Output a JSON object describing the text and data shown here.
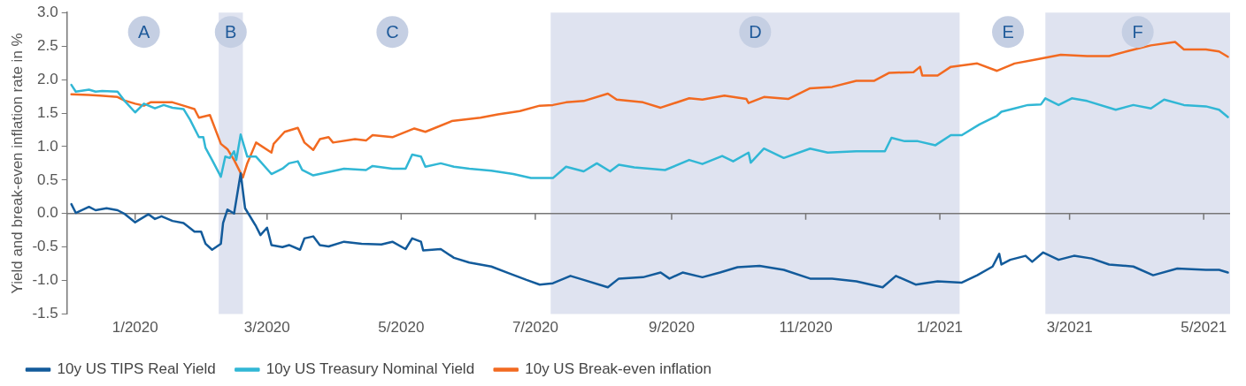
{
  "chart_data": {
    "type": "line",
    "ylabel": "Yield and break-even inflation rate in %",
    "xlim": [
      "2019-12-01",
      "2021-05-13"
    ],
    "xticks": [
      {
        "value": "2020-01-01",
        "label": "1/2020"
      },
      {
        "value": "2020-03-01",
        "label": "3/2020"
      },
      {
        "value": "2020-05-01",
        "label": "5/2020"
      },
      {
        "value": "2020-07-01",
        "label": "7/2020"
      },
      {
        "value": "2020-09-01",
        "label": "9/2020"
      },
      {
        "value": "2020-11-01",
        "label": "11/2020"
      },
      {
        "value": "2021-01-01",
        "label": "1/2021"
      },
      {
        "value": "2021-03-01",
        "label": "3/2021"
      },
      {
        "value": "2021-05-01",
        "label": "5/2021"
      }
    ],
    "ylim": [
      -1.5,
      3
    ],
    "yticks": [
      -1.5,
      {
        "value": -1,
        "label": "-1.0"
      },
      -0.5,
      {
        "value": 0,
        "label": "0.0"
      },
      0.5,
      {
        "value": 1,
        "label": "1.0"
      },
      1.5,
      {
        "value": 2,
        "label": "2.0"
      },
      2.5,
      {
        "value": 3,
        "label": "3.0"
      }
    ],
    "grid": false,
    "legend": "bottom left",
    "marker": "none",
    "line_style": "solid",
    "bands": [
      {
        "axis": "x",
        "from": "2020-02-08",
        "to": "2020-02-19",
        "label": "B",
        "color": "#dfe3f0"
      },
      {
        "axis": "x",
        "from": "2020-07-08",
        "to": "2021-01-10",
        "label": "D",
        "color": "#dfe3f0"
      },
      {
        "axis": "x",
        "from": "2021-02-18",
        "to": "2021-05-13",
        "label": "F",
        "color": "#dfe3f0"
      }
    ],
    "ref_lines": [
      {
        "axis": "y",
        "value": 0,
        "color": "#777777"
      }
    ],
    "annotations": [
      {
        "text": "A",
        "x": "2020-01-05",
        "y": 2.71
      },
      {
        "text": "C",
        "x": "2020-04-27",
        "y": 2.71
      },
      {
        "text": "E",
        "x": "2021-02-01",
        "y": 2.71
      }
    ],
    "series": [
      {
        "name": "10y US TIPS Real Yield",
        "color": "#135b9b",
        "x": [
          "2019-12-03",
          "2019-12-05",
          "2019-12-11",
          "2019-12-14",
          "2019-12-19",
          "2019-12-24",
          "2019-12-27",
          "2020-01-01",
          "2020-01-07",
          "2020-01-10",
          "2020-01-13",
          "2020-01-18",
          "2020-01-23",
          "2020-01-28",
          "2020-01-31",
          "2020-02-02",
          "2020-02-05",
          "2020-02-09",
          "2020-02-10",
          "2020-02-12",
          "2020-02-15",
          "2020-02-18",
          "2020-02-20",
          "2020-02-25",
          "2020-02-27",
          "2020-03-01",
          "2020-03-03",
          "2020-03-08",
          "2020-03-11",
          "2020-03-16",
          "2020-03-18",
          "2020-03-22",
          "2020-03-25",
          "2020-03-29",
          "2020-04-05",
          "2020-04-13",
          "2020-04-22",
          "2020-04-27",
          "2020-05-03",
          "2020-05-06",
          "2020-05-10",
          "2020-05-11",
          "2020-05-19",
          "2020-05-25",
          "2020-06-01",
          "2020-06-11",
          "2020-06-19",
          "2020-06-27",
          "2020-07-03",
          "2020-07-09",
          "2020-07-17",
          "2020-07-23",
          "2020-08-03",
          "2020-08-08",
          "2020-08-19",
          "2020-08-27",
          "2020-08-31",
          "2020-09-06",
          "2020-09-15",
          "2020-09-23",
          "2020-10-01",
          "2020-10-11",
          "2020-10-22",
          "2020-11-03",
          "2020-11-13",
          "2020-11-24",
          "2020-12-06",
          "2020-12-12",
          "2020-12-21",
          "2020-12-31",
          "2021-01-11",
          "2021-01-18",
          "2021-01-25",
          "2021-01-28",
          "2021-01-29",
          "2021-02-02",
          "2021-02-09",
          "2021-02-12",
          "2021-02-17",
          "2021-02-24",
          "2021-03-03",
          "2021-03-11",
          "2021-03-19",
          "2021-03-30",
          "2021-04-08",
          "2021-04-19",
          "2021-05-02",
          "2021-05-08",
          "2021-05-12"
        ],
        "values": [
          0.14,
          0.01,
          0.1,
          0.05,
          0.08,
          0.05,
          0.0,
          -0.13,
          -0.01,
          -0.08,
          -0.04,
          -0.11,
          -0.14,
          -0.27,
          -0.27,
          -0.45,
          -0.54,
          -0.45,
          -0.14,
          0.06,
          0.0,
          0.6,
          0.08,
          -0.19,
          -0.32,
          -0.21,
          -0.47,
          -0.5,
          -0.47,
          -0.54,
          -0.37,
          -0.34,
          -0.47,
          -0.49,
          -0.42,
          -0.45,
          -0.46,
          -0.42,
          -0.53,
          -0.37,
          -0.42,
          -0.55,
          -0.53,
          -0.66,
          -0.73,
          -0.79,
          -0.89,
          -0.99,
          -1.06,
          -1.04,
          -0.93,
          -0.99,
          -1.1,
          -0.97,
          -0.95,
          -0.88,
          -0.97,
          -0.88,
          -0.95,
          -0.88,
          -0.8,
          -0.78,
          -0.84,
          -0.97,
          -0.97,
          -1.01,
          -1.1,
          -0.93,
          -1.06,
          -1.01,
          -1.03,
          -0.92,
          -0.79,
          -0.6,
          -0.76,
          -0.69,
          -0.63,
          -0.72,
          -0.58,
          -0.69,
          -0.63,
          -0.67,
          -0.76,
          -0.79,
          -0.92,
          -0.82,
          -0.84,
          -0.84,
          -0.88
        ]
      },
      {
        "name": "10y US Treasury Nominal Yield",
        "color": "#31b7d5",
        "x": [
          "2019-12-03",
          "2019-12-05",
          "2019-12-11",
          "2019-12-14",
          "2019-12-17",
          "2019-12-24",
          "2019-12-27",
          "2020-01-01",
          "2020-01-05",
          "2020-01-10",
          "2020-01-14",
          "2020-01-18",
          "2020-01-23",
          "2020-01-26",
          "2020-01-30",
          "2020-02-01",
          "2020-02-02",
          "2020-02-05",
          "2020-02-09",
          "2020-02-11",
          "2020-02-13",
          "2020-02-15",
          "2020-02-16",
          "2020-02-18",
          "2020-02-21",
          "2020-02-25",
          "2020-03-03",
          "2020-03-08",
          "2020-03-11",
          "2020-03-15",
          "2020-03-17",
          "2020-03-22",
          "2020-03-29",
          "2020-04-05",
          "2020-04-15",
          "2020-04-18",
          "2020-04-27",
          "2020-05-03",
          "2020-05-06",
          "2020-05-10",
          "2020-05-12",
          "2020-05-19",
          "2020-05-25",
          "2020-06-01",
          "2020-06-11",
          "2020-06-21",
          "2020-06-29",
          "2020-07-09",
          "2020-07-15",
          "2020-07-23",
          "2020-07-29",
          "2020-08-04",
          "2020-08-08",
          "2020-08-15",
          "2020-08-29",
          "2020-09-09",
          "2020-09-15",
          "2020-09-24",
          "2020-09-29",
          "2020-10-06",
          "2020-10-07",
          "2020-10-13",
          "2020-10-22",
          "2020-11-03",
          "2020-11-11",
          "2020-11-24",
          "2020-12-07",
          "2020-12-10",
          "2020-12-16",
          "2020-12-22",
          "2020-12-30",
          "2021-01-06",
          "2021-01-11",
          "2021-01-19",
          "2021-01-27",
          "2021-01-29",
          "2021-02-04",
          "2021-02-10",
          "2021-02-16",
          "2021-02-18",
          "2021-02-24",
          "2021-03-02",
          "2021-03-09",
          "2021-03-22",
          "2021-03-30",
          "2021-04-07",
          "2021-04-13",
          "2021-04-22",
          "2021-05-02",
          "2021-05-08",
          "2021-05-12"
        ],
        "values": [
          1.92,
          1.82,
          1.85,
          1.82,
          1.83,
          1.82,
          1.69,
          1.51,
          1.64,
          1.57,
          1.62,
          1.58,
          1.56,
          1.4,
          1.14,
          1.14,
          0.98,
          0.8,
          0.55,
          0.85,
          0.83,
          0.93,
          0.8,
          1.18,
          0.85,
          0.85,
          0.59,
          0.67,
          0.75,
          0.78,
          0.65,
          0.57,
          0.62,
          0.67,
          0.65,
          0.71,
          0.67,
          0.67,
          0.88,
          0.85,
          0.7,
          0.75,
          0.7,
          0.67,
          0.64,
          0.59,
          0.53,
          0.53,
          0.7,
          0.63,
          0.75,
          0.63,
          0.73,
          0.69,
          0.65,
          0.8,
          0.74,
          0.86,
          0.78,
          0.91,
          0.76,
          0.97,
          0.83,
          0.97,
          0.91,
          0.93,
          0.93,
          1.13,
          1.08,
          1.08,
          1.02,
          1.17,
          1.17,
          1.33,
          1.46,
          1.52,
          1.57,
          1.62,
          1.63,
          1.72,
          1.62,
          1.72,
          1.68,
          1.55,
          1.62,
          1.57,
          1.7,
          1.62,
          1.6,
          1.55,
          1.44
        ]
      },
      {
        "name": "10y US Break-even inflation",
        "color": "#f26a21",
        "x": [
          "2019-12-03",
          "2019-12-11",
          "2019-12-16",
          "2019-12-24",
          "2019-12-27",
          "2020-01-01",
          "2020-01-05",
          "2020-01-08",
          "2020-01-18",
          "2020-01-23",
          "2020-01-28",
          "2020-01-30",
          "2020-02-04",
          "2020-02-09",
          "2020-02-12",
          "2020-02-15",
          "2020-02-19",
          "2020-02-21",
          "2020-02-25",
          "2020-03-03",
          "2020-03-04",
          "2020-03-09",
          "2020-03-15",
          "2020-03-18",
          "2020-03-22",
          "2020-03-25",
          "2020-03-29",
          "2020-03-31",
          "2020-04-10",
          "2020-04-15",
          "2020-04-18",
          "2020-04-27",
          "2020-05-07",
          "2020-05-12",
          "2020-05-24",
          "2020-06-06",
          "2020-06-14",
          "2020-06-24",
          "2020-07-03",
          "2020-07-09",
          "2020-07-15",
          "2020-07-23",
          "2020-08-03",
          "2020-08-07",
          "2020-08-19",
          "2020-08-27",
          "2020-09-09",
          "2020-09-15",
          "2020-09-25",
          "2020-10-05",
          "2020-10-06",
          "2020-10-13",
          "2020-10-24",
          "2020-11-03",
          "2020-11-13",
          "2020-11-24",
          "2020-12-02",
          "2020-12-09",
          "2020-12-20",
          "2020-12-23",
          "2020-12-24",
          "2020-12-31",
          "2021-01-06",
          "2021-01-18",
          "2021-01-27",
          "2021-02-04",
          "2021-02-14",
          "2021-02-25",
          "2021-03-09",
          "2021-03-19",
          "2021-03-28",
          "2021-04-07",
          "2021-04-18",
          "2021-04-22",
          "2021-05-02",
          "2021-05-08",
          "2021-05-12"
        ],
        "values": [
          1.78,
          1.77,
          1.76,
          1.74,
          1.69,
          1.64,
          1.61,
          1.66,
          1.66,
          1.61,
          1.56,
          1.43,
          1.47,
          1.04,
          0.96,
          0.8,
          0.54,
          0.75,
          1.06,
          0.91,
          1.04,
          1.22,
          1.28,
          1.06,
          0.95,
          1.11,
          1.14,
          1.06,
          1.11,
          1.09,
          1.17,
          1.14,
          1.27,
          1.22,
          1.38,
          1.43,
          1.48,
          1.53,
          1.61,
          1.62,
          1.66,
          1.68,
          1.79,
          1.7,
          1.66,
          1.58,
          1.72,
          1.7,
          1.76,
          1.71,
          1.65,
          1.74,
          1.71,
          1.87,
          1.89,
          1.98,
          1.98,
          2.1,
          2.11,
          2.19,
          2.06,
          2.06,
          2.19,
          2.24,
          2.13,
          2.24,
          2.3,
          2.37,
          2.35,
          2.35,
          2.43,
          2.51,
          2.56,
          2.45,
          2.45,
          2.42,
          2.34
        ]
      }
    ]
  }
}
